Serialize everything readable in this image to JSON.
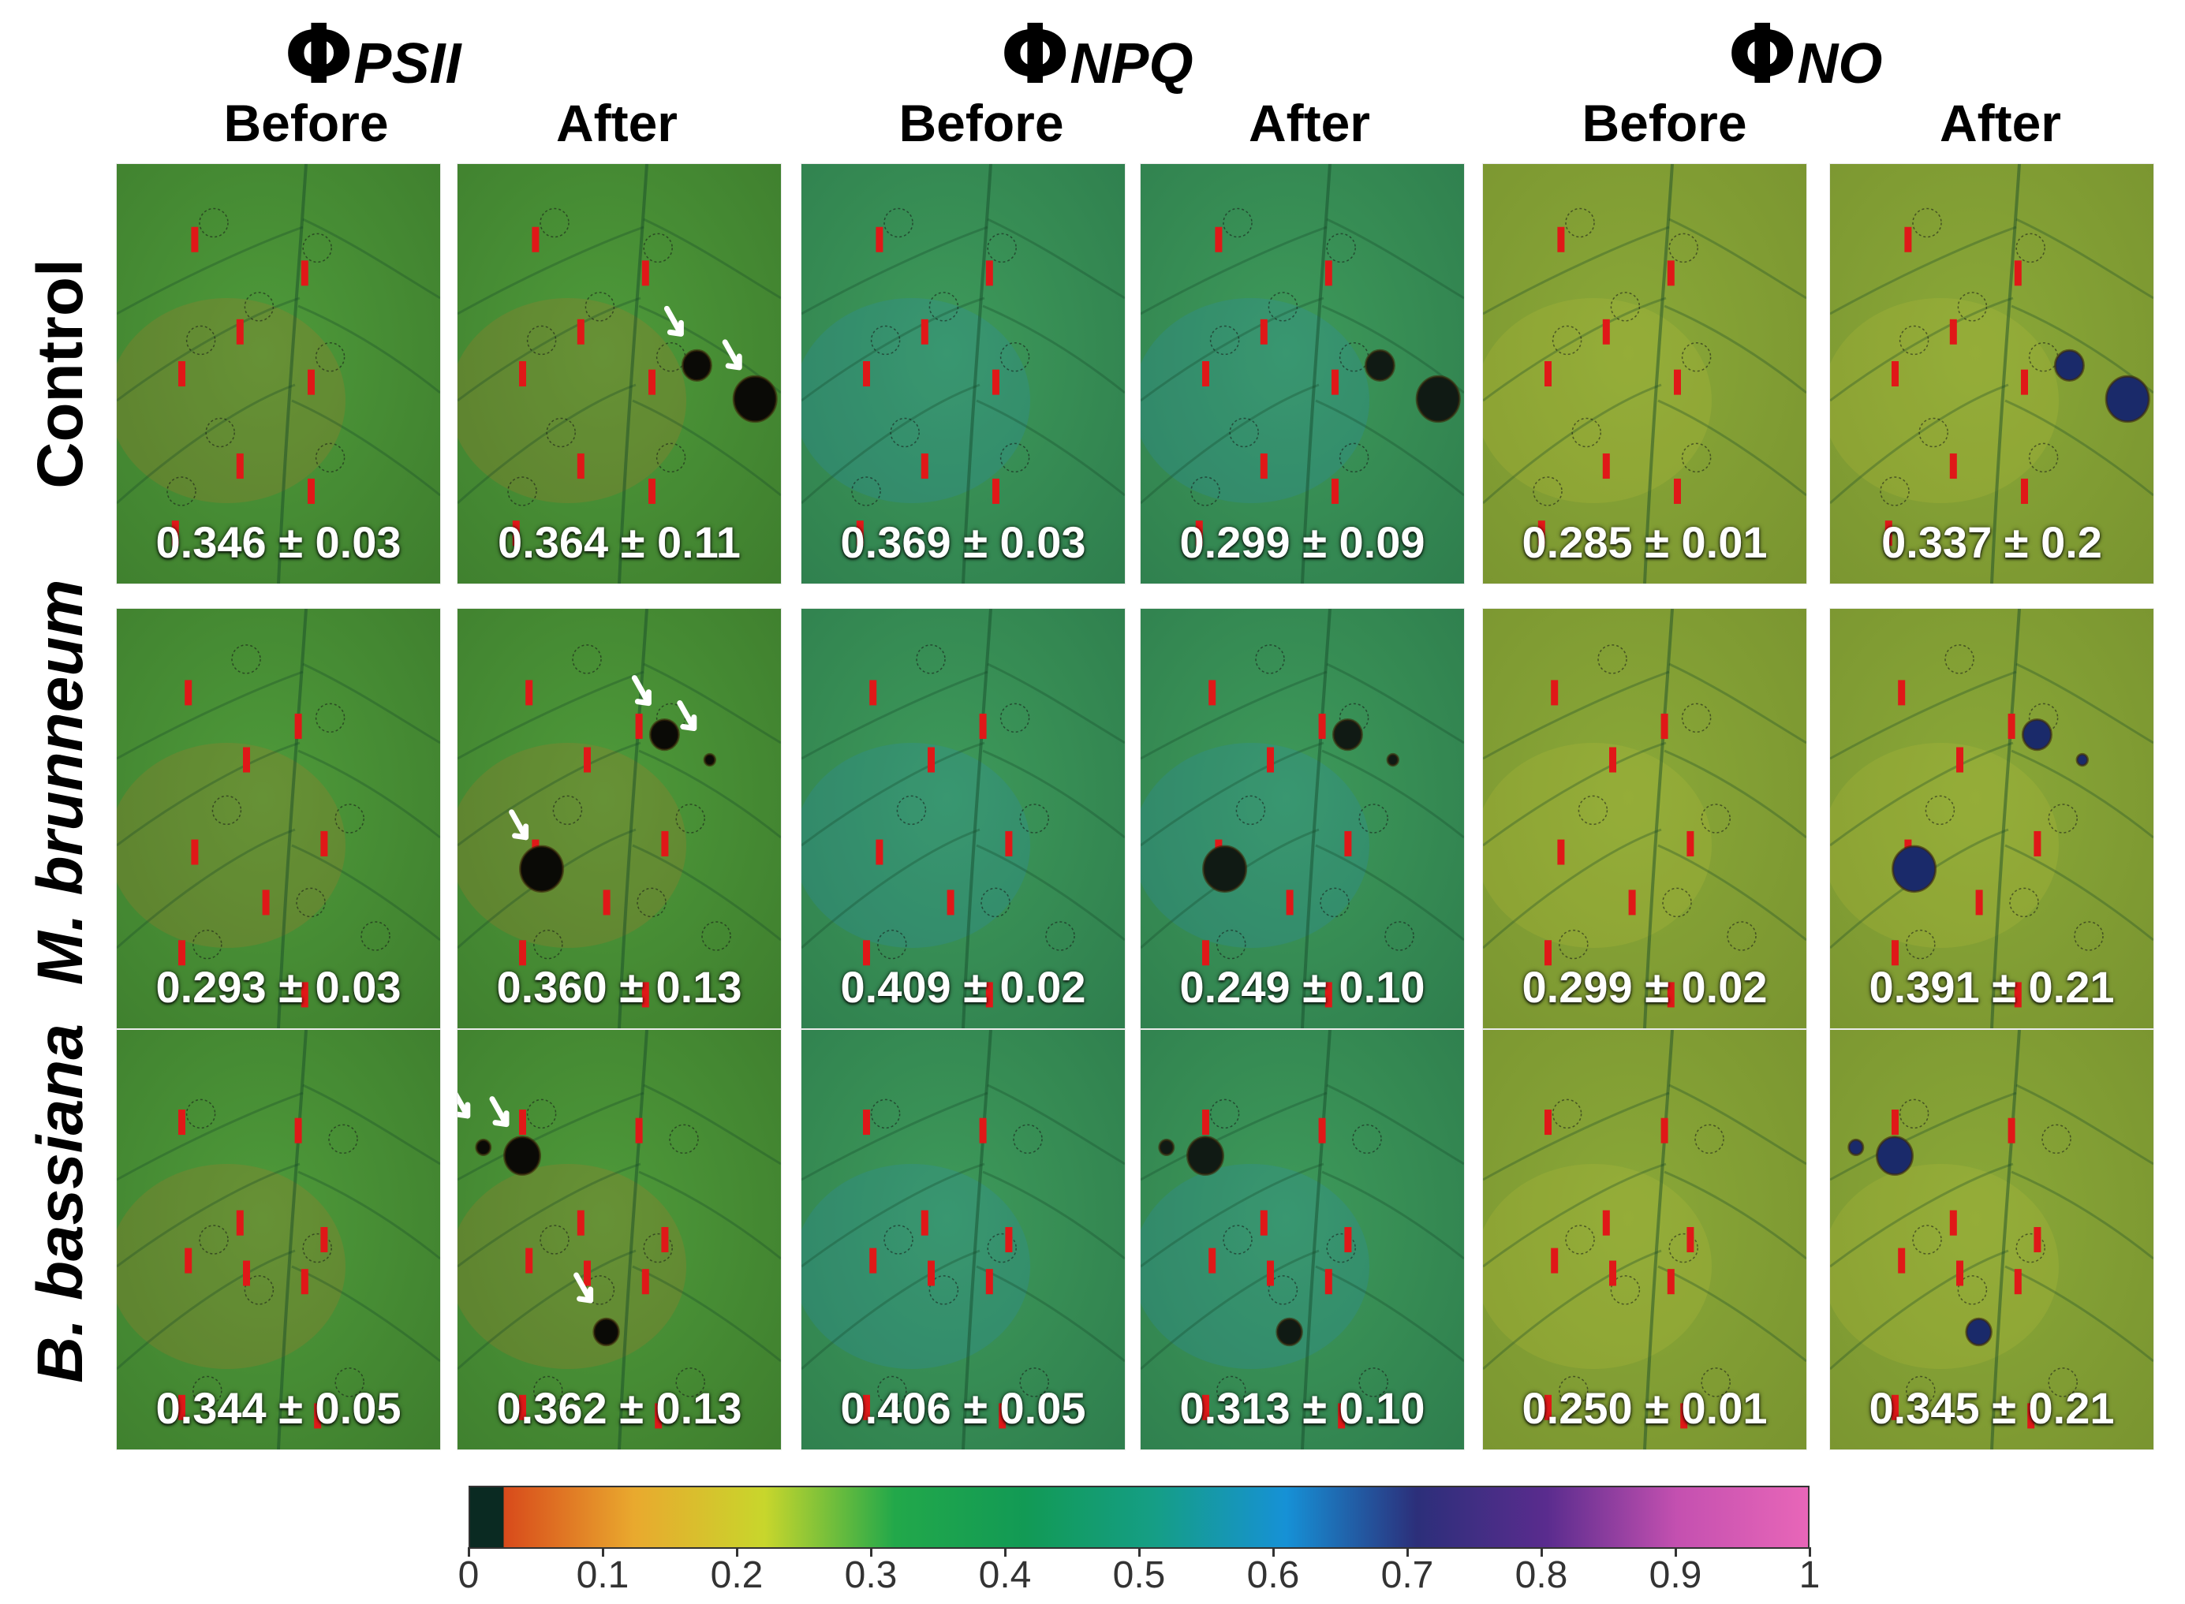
{
  "groups": [
    {
      "symbol": "Φ",
      "subscript": "PSII"
    },
    {
      "symbol": "Φ",
      "subscript": "NPQ"
    },
    {
      "symbol": "Φ",
      "subscript": "NO"
    }
  ],
  "columns": [
    "Before",
    "After",
    "Before",
    "After",
    "Before",
    "After"
  ],
  "rows": [
    {
      "label": "Control",
      "italic": false
    },
    {
      "label": "M. brunneum",
      "italic": true
    },
    {
      "label": "B. bassiana",
      "italic": true
    }
  ],
  "values": [
    [
      "0.346 ± 0.03",
      "0.364 ± 0.11",
      "0.369 ± 0.03",
      "0.299 ± 0.09",
      "0.285 ± 0.01",
      "0.337 ± 0.2"
    ],
    [
      "0.293 ± 0.03",
      "0.360 ±   0.13",
      "0.409 ± 0.02",
      "0.249 ± 0.10",
      "0.299 ± 0.02",
      "0.391 ± 0.21"
    ],
    [
      "0.344 ± 0.05",
      "0.362 ± 0.13",
      "0.406 ± 0.05",
      "0.313 ± 0.10",
      "0.250 ± 0.01",
      "0.345 ± 0.21"
    ]
  ],
  "colorbar": {
    "ticks": [
      "0",
      "0.1",
      "0.2",
      "0.3",
      "0.4",
      "0.5",
      "0.6",
      "0.7",
      "0.8",
      "0.9",
      "1"
    ],
    "stops": [
      "#0a2a22",
      "#d84a1b",
      "#e9a92e",
      "#c8d62c",
      "#22a84a",
      "#129a55",
      "#159e86",
      "#1691d6",
      "#2c2f7a",
      "#5a2c8e",
      "#c450b0",
      "#e866b8"
    ]
  },
  "colors": {
    "leaf_psii": "#4e9a3a",
    "leaf_npq": "#3e9a5a",
    "leaf_no": "#8aa838",
    "marker": "#e01818",
    "arrow": "#ffffff",
    "lesion_dark": "#0a0a06",
    "lesion_blue": "#1a2a6a"
  }
}
